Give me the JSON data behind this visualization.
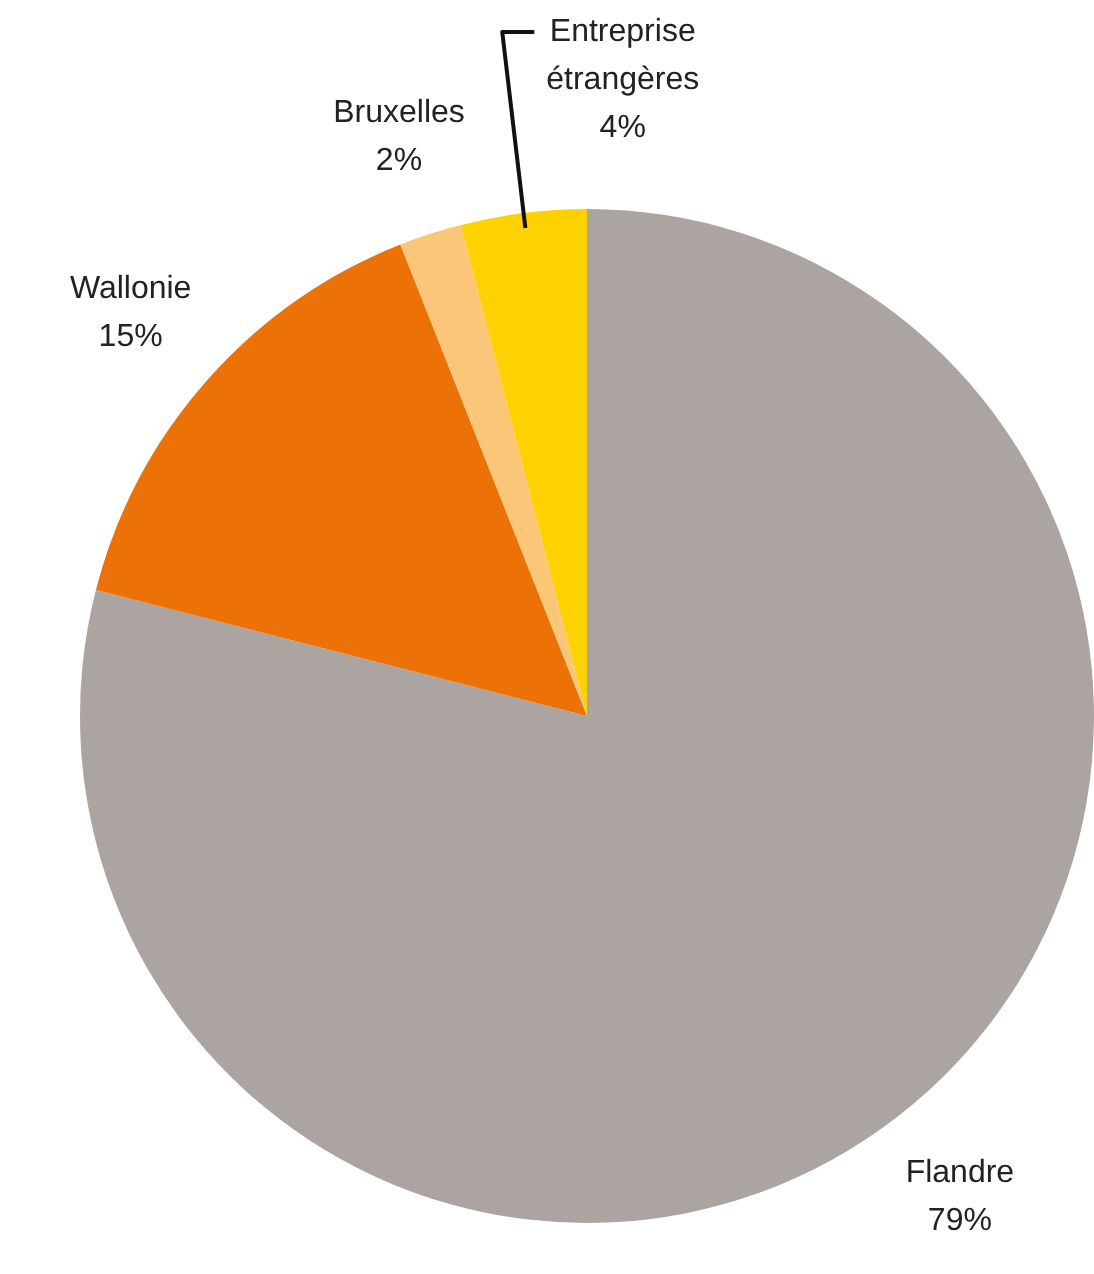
{
  "chart_data": {
    "type": "pie",
    "categories": [
      "Flandre",
      "Wallonie",
      "Bruxelles",
      "Entreprise étrangères"
    ],
    "values": [
      79,
      15,
      2,
      4
    ],
    "colors": [
      "#aba4a0",
      "#ec7207",
      "#fbc677",
      "#ffd100"
    ],
    "value_labels": [
      "79%",
      "15%",
      "2%",
      "4%"
    ]
  }
}
